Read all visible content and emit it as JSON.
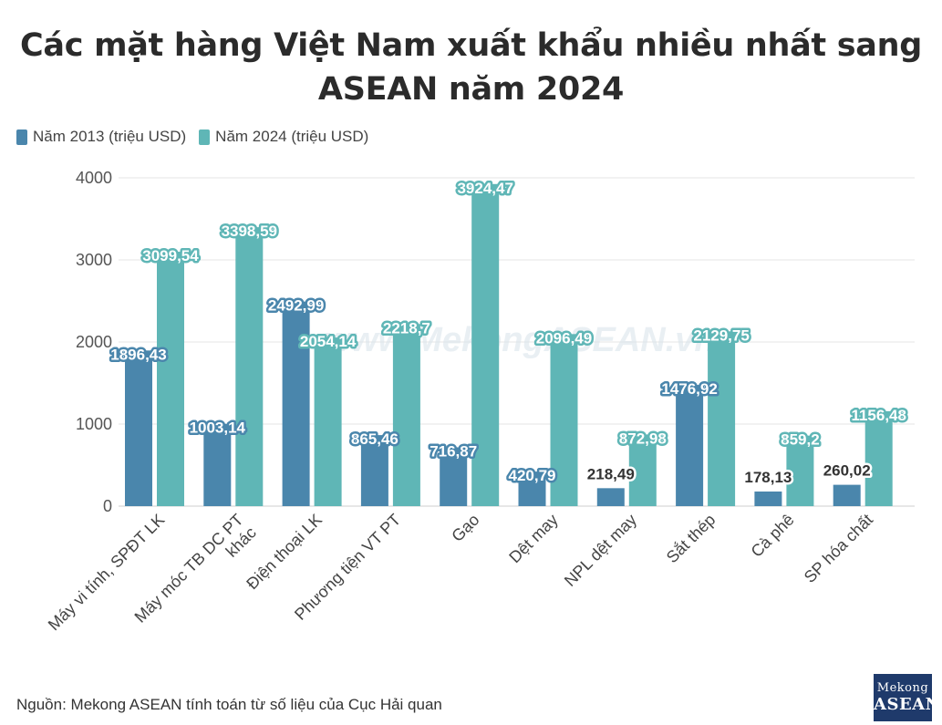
{
  "title": "Các mặt hàng Việt Nam xuất khẩu nhiều nhất sang ASEAN năm 2024",
  "legend": [
    {
      "label": "Năm 2013 (triệu USD)",
      "color": "#4a86ac"
    },
    {
      "label": "Năm 2024 (triệu USD)",
      "color": "#5fb6b6"
    }
  ],
  "watermark": "www.MekongASEAN.vn",
  "source": "Nguồn: Mekong ASEAN tính toán từ số liệu của Cục Hải quan",
  "logo": {
    "line1": "Mekong",
    "line2": "ASEAN"
  },
  "chart_data": {
    "type": "bar",
    "categories": [
      "Máy vi tính, SPĐT LK",
      "Máy móc TB DC PT khác",
      "Điện thoại LK",
      "Phương tiện VT PT",
      "Gạo",
      "Dệt may",
      "NPL dệt may",
      "Sắt thép",
      "Cà phê",
      "SP hóa chất"
    ],
    "category_lines": [
      [
        "Máy vi tính, SPĐT LK"
      ],
      [
        "Máy móc TB DC PT",
        "khác"
      ],
      [
        "Điện thoại LK"
      ],
      [
        "Phương tiện VT PT"
      ],
      [
        "Gạo"
      ],
      [
        "Dệt may"
      ],
      [
        "NPL dệt may"
      ],
      [
        "Sắt thép"
      ],
      [
        "Cà phê"
      ],
      [
        "SP hóa chất"
      ]
    ],
    "series": [
      {
        "name": "Năm 2013 (triệu USD)",
        "color": "#4a86ac",
        "values": [
          1896.43,
          1003.14,
          2492.99,
          865.46,
          716.87,
          420.79,
          218.49,
          1476.92,
          178.13,
          260.02
        ],
        "labels": [
          "1896,43",
          "1003,14",
          "2492,99",
          "865,46",
          "716,87",
          "420,79",
          "218,49",
          "1476,92",
          "178,13",
          "260,02"
        ]
      },
      {
        "name": "Năm 2024 (triệu USD)",
        "color": "#5fb6b6",
        "values": [
          3099.54,
          3398.59,
          2054.14,
          2218.7,
          3924.47,
          2096.49,
          872.98,
          2129.75,
          859.2,
          1156.48
        ],
        "labels": [
          "3099,54",
          "3398,59",
          "2054,14",
          "2218,7",
          "3924,47",
          "2096,49",
          "872,98",
          "2129,75",
          "859,2",
          "1156,48"
        ]
      }
    ],
    "yticks": [
      "0",
      "1000",
      "2000",
      "3000",
      "4000"
    ],
    "ylim": [
      0,
      4000
    ],
    "grid": true,
    "legend_position": "top-left"
  }
}
